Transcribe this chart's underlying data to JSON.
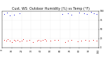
{
  "title": "Cust. WS  Outdoor Humidity (%) vs Temp (°F)",
  "blue_color": "#0000dd",
  "red_color": "#dd0000",
  "ylim": [
    0,
    100
  ],
  "xlim": [
    0,
    100
  ],
  "yticks": [
    0,
    25,
    50,
    75,
    100
  ],
  "background_color": "#ffffff",
  "grid_color": "#cccccc",
  "title_fontsize": 3.5,
  "tick_fontsize": 2.2,
  "blue_dots": {
    "x": [
      2,
      5,
      8,
      12,
      18,
      62,
      68,
      72,
      80,
      85,
      88,
      92,
      95,
      98
    ],
    "y": [
      92,
      95,
      88,
      90,
      93,
      91,
      94,
      89,
      96,
      93,
      91,
      97,
      94,
      92
    ]
  },
  "red_dots": {
    "x": [
      2,
      4,
      6,
      8,
      10,
      12,
      14,
      16,
      18,
      20,
      22,
      25,
      28,
      32,
      36,
      38,
      40,
      42,
      44,
      46,
      50,
      54,
      58,
      65,
      68,
      72,
      78,
      82,
      86,
      90,
      94,
      98
    ],
    "y": [
      20,
      18,
      22,
      19,
      16,
      21,
      18,
      20,
      17,
      19,
      22,
      18,
      20,
      16,
      19,
      21,
      18,
      20,
      22,
      19,
      18,
      20,
      21,
      16,
      18,
      20,
      17,
      19,
      21,
      18,
      20,
      19
    ]
  }
}
